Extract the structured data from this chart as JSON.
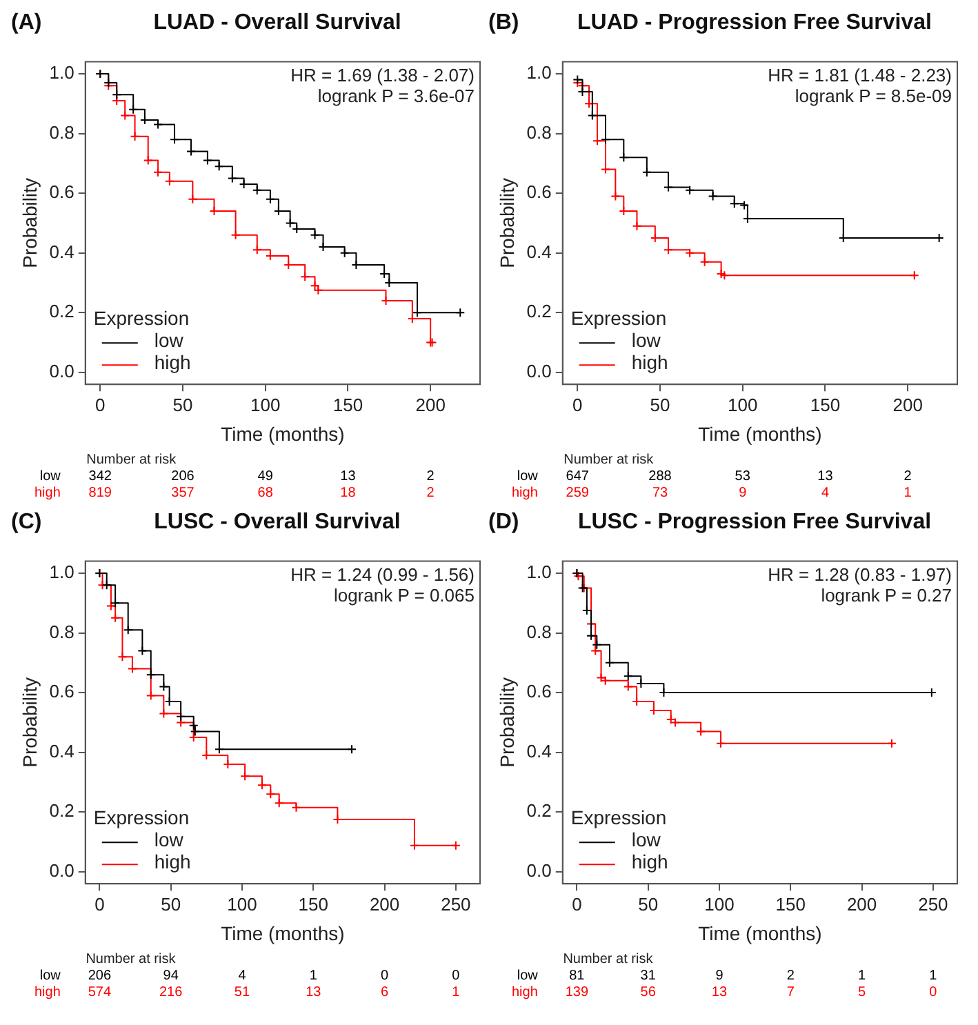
{
  "chart_data": [
    {
      "type": "step",
      "title": "LUAD - Overall Survival",
      "xlabel": "Time (months)",
      "ylabel": "Probability",
      "legend_title": "Expression",
      "legend": "bottom left",
      "marker": "cross",
      "annotations": [
        "(A)",
        "HR = 1.69 (1.38 - 2.07)",
        "logrank P = 3.6e-07",
        "Number at risk",
        "low",
        "342",
        "206",
        "49",
        "13",
        "2",
        "high",
        "819",
        "357",
        "68",
        "18",
        "2"
      ],
      "xlim": [
        -9,
        230
      ],
      "xticks": [
        0,
        50,
        100,
        150,
        200
      ],
      "ylim": [
        -0.04,
        1.04
      ],
      "yticks": [
        {
          "value": 0,
          "label": "0.0"
        },
        {
          "value": 0.2,
          "label": "0.2"
        },
        {
          "value": 0.4,
          "label": "0.4"
        },
        {
          "value": 0.6,
          "label": "0.6"
        },
        {
          "value": 0.8,
          "label": "0.8"
        },
        {
          "value": 1,
          "label": "1.0"
        }
      ],
      "series": [
        {
          "name": "low",
          "color": "#000000",
          "x": [
            0,
            5,
            10,
            20,
            27,
            35,
            45,
            55,
            65,
            72,
            80,
            87,
            95,
            103,
            108,
            115,
            119,
            130,
            135,
            148,
            155,
            172,
            175,
            192,
            218
          ],
          "values": [
            1,
            0.97,
            0.93,
            0.88,
            0.845,
            0.83,
            0.78,
            0.74,
            0.71,
            0.69,
            0.65,
            0.63,
            0.61,
            0.58,
            0.54,
            0.5,
            0.48,
            0.46,
            0.42,
            0.4,
            0.36,
            0.33,
            0.3,
            0.2,
            0.2
          ]
        },
        {
          "name": "high",
          "color": "#ff0000",
          "x": [
            0,
            5,
            10,
            15,
            21,
            29,
            35,
            42,
            56,
            69,
            82,
            95,
            103,
            114,
            124,
            130,
            132,
            173,
            189,
            200,
            201
          ],
          "values": [
            1,
            0.96,
            0.91,
            0.86,
            0.79,
            0.71,
            0.67,
            0.64,
            0.58,
            0.54,
            0.46,
            0.41,
            0.39,
            0.36,
            0.32,
            0.29,
            0.275,
            0.24,
            0.18,
            0.1,
            0.1
          ]
        }
      ]
    },
    {
      "type": "step",
      "title": "LUAD - Progression Free Survival",
      "xlabel": "Time (months)",
      "ylabel": "Probability",
      "legend_title": "Expression",
      "legend": "bottom left",
      "marker": "cross",
      "annotations": [
        "(B)",
        "HR = 1.81 (1.48 - 2.23)",
        "logrank P = 8.5e-09",
        "Number at risk",
        "low",
        "647",
        "288",
        "53",
        "13",
        "2",
        "high",
        "259",
        "73",
        "9",
        "4",
        "1"
      ],
      "xlim": [
        -9,
        230
      ],
      "xticks": [
        0,
        50,
        100,
        150,
        200
      ],
      "ylim": [
        -0.04,
        1.04
      ],
      "yticks": [
        {
          "value": 0,
          "label": "0.0"
        },
        {
          "value": 0.2,
          "label": "0.2"
        },
        {
          "value": 0.4,
          "label": "0.4"
        },
        {
          "value": 0.6,
          "label": "0.6"
        },
        {
          "value": 0.8,
          "label": "0.8"
        },
        {
          "value": 1,
          "label": "1.0"
        }
      ],
      "series": [
        {
          "name": "low",
          "color": "#000000",
          "x": [
            0,
            3,
            9,
            17,
            28,
            42,
            55,
            68,
            82,
            95,
            101,
            103,
            161,
            219
          ],
          "values": [
            0.98,
            0.94,
            0.86,
            0.78,
            0.72,
            0.67,
            0.62,
            0.61,
            0.59,
            0.565,
            0.56,
            0.515,
            0.45,
            0.45
          ]
        },
        {
          "name": "high",
          "color": "#ff0000",
          "x": [
            0,
            3,
            7,
            12,
            17,
            23,
            28,
            36,
            47,
            55,
            68,
            77,
            87,
            89,
            204
          ],
          "values": [
            0.97,
            0.96,
            0.9,
            0.775,
            0.68,
            0.59,
            0.54,
            0.49,
            0.45,
            0.41,
            0.4,
            0.37,
            0.33,
            0.325,
            0.325
          ]
        }
      ]
    },
    {
      "type": "step",
      "title": "LUSC - Overall Survival",
      "xlabel": "Time (months)",
      "ylabel": "Probability",
      "legend_title": "Expression",
      "legend": "bottom left",
      "marker": "cross",
      "annotations": [
        "(C)",
        "HR = 1.24 (0.99 - 1.56)",
        "logrank P = 0.065",
        "Number at risk",
        "low",
        "206",
        "94",
        "4",
        "1",
        "0",
        "0",
        "high",
        "574",
        "216",
        "51",
        "13",
        "6",
        "1"
      ],
      "xlim": [
        -10,
        267
      ],
      "xticks": [
        0,
        50,
        100,
        150,
        200,
        250
      ],
      "ylim": [
        -0.04,
        1.04
      ],
      "yticks": [
        {
          "value": 0,
          "label": "0.0"
        },
        {
          "value": 0.2,
          "label": "0.2"
        },
        {
          "value": 0.4,
          "label": "0.4"
        },
        {
          "value": 0.6,
          "label": "0.6"
        },
        {
          "value": 0.8,
          "label": "0.8"
        },
        {
          "value": 1,
          "label": "1.0"
        }
      ],
      "series": [
        {
          "name": "low",
          "color": "#000000",
          "x": [
            0,
            5,
            11,
            20,
            30,
            36,
            45,
            49,
            57,
            66,
            67,
            84,
            177
          ],
          "values": [
            1,
            0.96,
            0.9,
            0.81,
            0.74,
            0.66,
            0.62,
            0.57,
            0.52,
            0.49,
            0.47,
            0.41,
            0.41
          ]
        },
        {
          "name": "high",
          "color": "#ff0000",
          "x": [
            0,
            2,
            8,
            11,
            16,
            23,
            36,
            45,
            57,
            66,
            75,
            90,
            102,
            114,
            120,
            126,
            138,
            167,
            221,
            250
          ],
          "values": [
            1,
            0.96,
            0.89,
            0.85,
            0.72,
            0.68,
            0.59,
            0.53,
            0.5,
            0.45,
            0.39,
            0.36,
            0.32,
            0.29,
            0.26,
            0.23,
            0.215,
            0.175,
            0.088,
            0.088
          ]
        }
      ]
    },
    {
      "type": "step",
      "title": "LUSC - Progression Free Survival",
      "xlabel": "Time (months)",
      "ylabel": "Probability",
      "legend_title": "Expression",
      "legend": "bottom left",
      "marker": "cross",
      "annotations": [
        "(D)",
        "HR = 1.28 (0.83 - 1.97)",
        "logrank P = 0.27",
        "Number at risk",
        "low",
        "81",
        "31",
        "9",
        "2",
        "1",
        "1",
        "high",
        "139",
        "56",
        "13",
        "7",
        "5",
        "0"
      ],
      "xlim": [
        -10,
        267
      ],
      "xticks": [
        0,
        50,
        100,
        150,
        200,
        250
      ],
      "ylim": [
        -0.04,
        1.04
      ],
      "yticks": [
        {
          "value": 0,
          "label": "0.0"
        },
        {
          "value": 0.2,
          "label": "0.2"
        },
        {
          "value": 0.4,
          "label": "0.4"
        },
        {
          "value": 0.6,
          "label": "0.6"
        },
        {
          "value": 0.8,
          "label": "0.8"
        },
        {
          "value": 1,
          "label": "1.0"
        }
      ],
      "series": [
        {
          "name": "low",
          "color": "#000000",
          "x": [
            0,
            4,
            7,
            10,
            14,
            23,
            36,
            45,
            61,
            249
          ],
          "values": [
            1,
            0.95,
            0.875,
            0.79,
            0.76,
            0.7,
            0.655,
            0.63,
            0.6,
            0.6
          ]
        },
        {
          "name": "high",
          "color": "#ff0000",
          "x": [
            0,
            1,
            5,
            10,
            13,
            17,
            20,
            36,
            42,
            54,
            66,
            69,
            87,
            101,
            221
          ],
          "values": [
            1,
            0.99,
            0.95,
            0.83,
            0.74,
            0.65,
            0.64,
            0.62,
            0.57,
            0.54,
            0.51,
            0.5,
            0.47,
            0.43,
            0.43
          ]
        }
      ]
    }
  ]
}
